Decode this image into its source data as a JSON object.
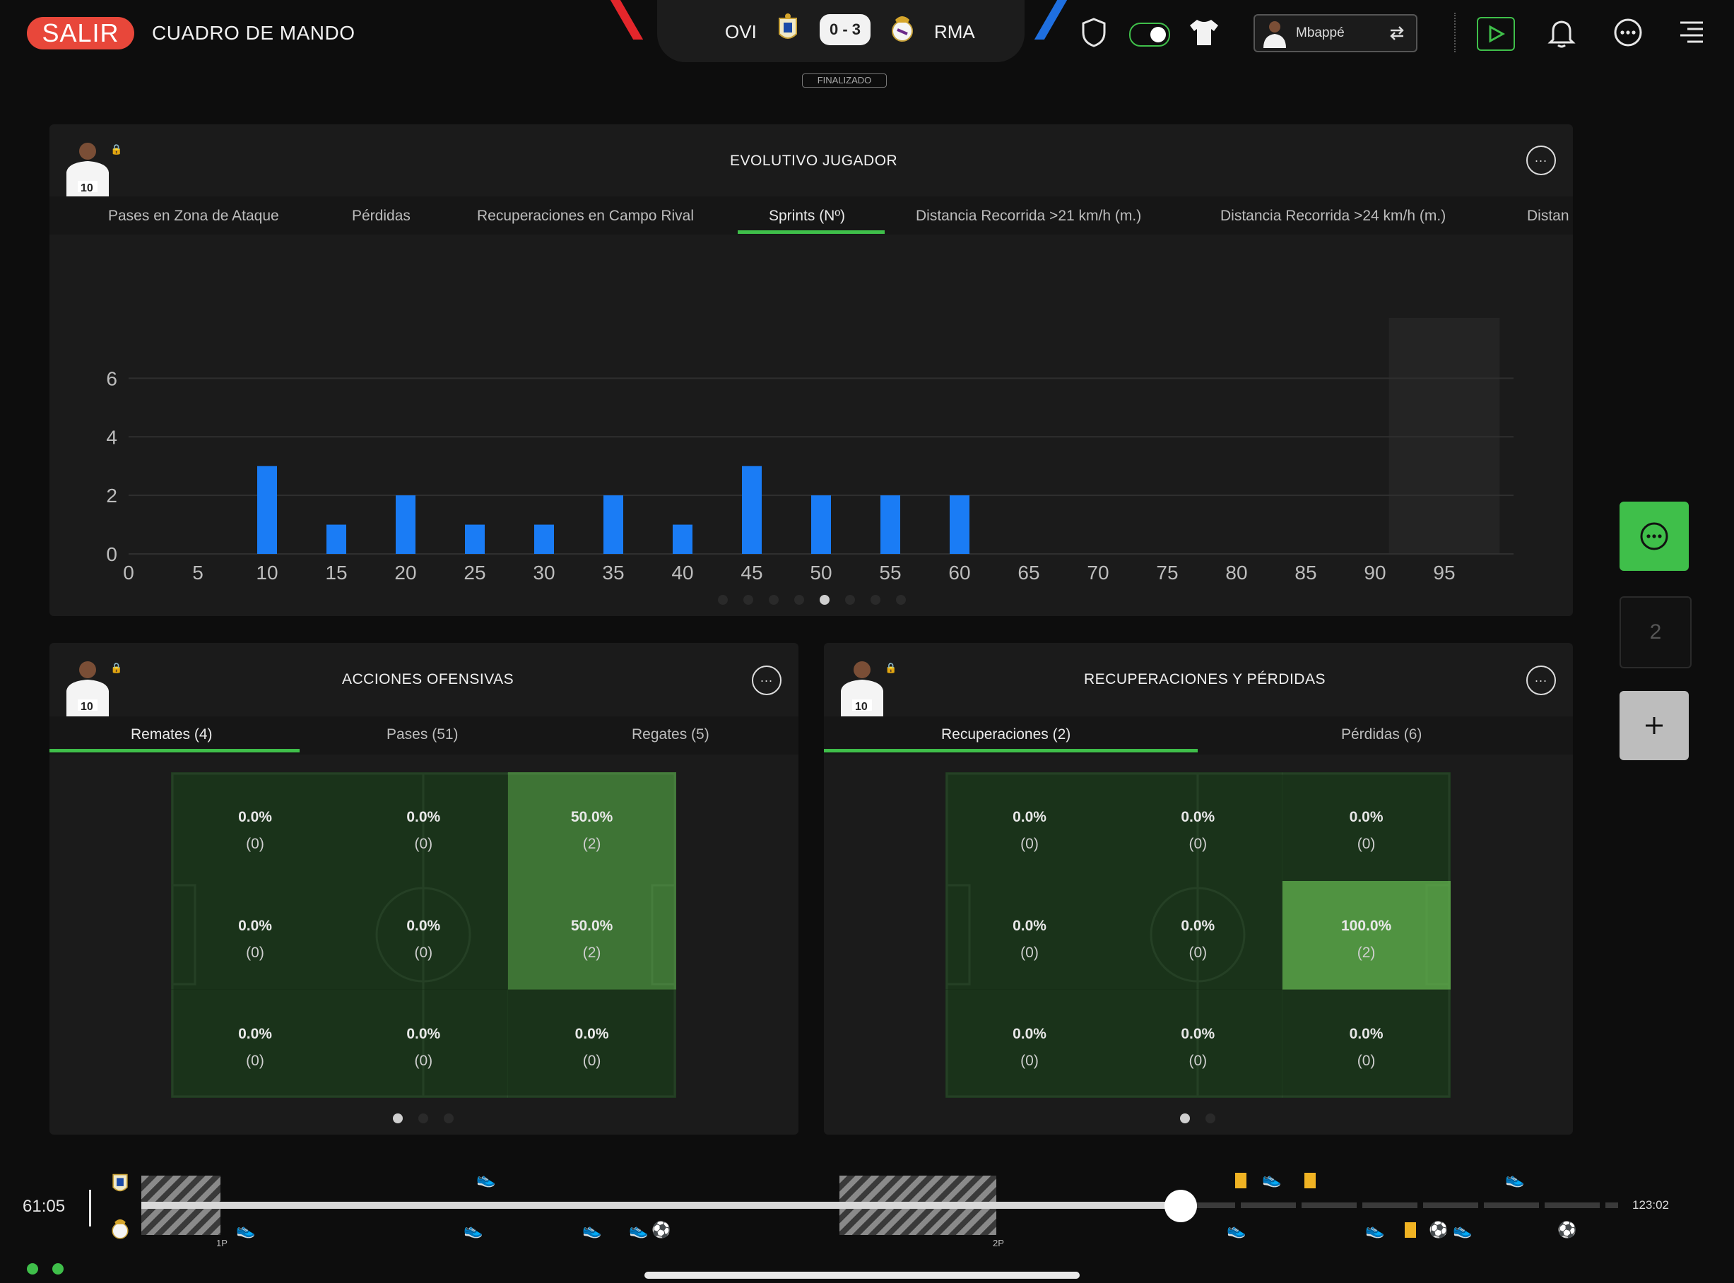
{
  "topbar": {
    "exit_label": "SALIR",
    "title": "CUADRO DE MANDO",
    "home_team": "OVI",
    "score": "0 - 3",
    "away_team": "RMA",
    "status": "FINALIZADO",
    "player_name": "Mbappé",
    "accent": "#3fbf4a"
  },
  "evolutivo": {
    "title": "EVOLUTIVO JUGADOR",
    "jersey": "10",
    "tabs": [
      "Pases en Zona de Ataque",
      "Pérdidas",
      "Recuperaciones en Campo Rival",
      "Sprints (Nº)",
      "Distancia Recorrida >21 km/h (m.)",
      "Distancia Recorrida >24 km/h (m.)",
      "Distan"
    ],
    "active_tab": 3
  },
  "chart_data": {
    "type": "bar",
    "x": [
      10,
      15,
      20,
      25,
      30,
      35,
      40,
      45,
      50,
      55,
      60
    ],
    "values": [
      3,
      1,
      2,
      1,
      1,
      2,
      1,
      3,
      2,
      2,
      2
    ],
    "x_ticks": [
      "0",
      "5",
      "10",
      "15",
      "20",
      "25",
      "30",
      "35",
      "40",
      "45",
      "50",
      "55",
      "60",
      "65",
      "70",
      "75",
      "80",
      "85",
      "90",
      "95"
    ],
    "y_ticks": [
      "0",
      "2",
      "4",
      "6"
    ],
    "xlim": [
      0,
      100
    ],
    "ylim": [
      0,
      7
    ],
    "grid": true,
    "bar_color": "#1a7cf5",
    "highlight_range": [
      91,
      99
    ]
  },
  "ofensivas": {
    "title": "ACCIONES OFENSIVAS",
    "jersey": "10",
    "tabs": [
      "Remates (4)",
      "Pases (51)",
      "Regates (5)"
    ],
    "cells": [
      {
        "pct": "0.0%",
        "count": "(0)"
      },
      {
        "pct": "0.0%",
        "count": "(0)"
      },
      {
        "pct": "50.0%",
        "count": "(2)",
        "intensity": 0.5
      },
      {
        "pct": "0.0%",
        "count": "(0)"
      },
      {
        "pct": "0.0%",
        "count": "(0)"
      },
      {
        "pct": "50.0%",
        "count": "(2)",
        "intensity": 0.5
      },
      {
        "pct": "0.0%",
        "count": "(0)"
      },
      {
        "pct": "0.0%",
        "count": "(0)"
      },
      {
        "pct": "0.0%",
        "count": "(0)"
      }
    ]
  },
  "recuperaciones": {
    "title": "RECUPERACIONES Y PÉRDIDAS",
    "jersey": "10",
    "tabs": [
      "Recuperaciones (2)",
      "Pérdidas (6)"
    ],
    "cells": [
      {
        "pct": "0.0%",
        "count": "(0)"
      },
      {
        "pct": "0.0%",
        "count": "(0)"
      },
      {
        "pct": "0.0%",
        "count": "(0)"
      },
      {
        "pct": "0.0%",
        "count": "(0)"
      },
      {
        "pct": "0.0%",
        "count": "(0)"
      },
      {
        "pct": "100.0%",
        "count": "(2)",
        "intensity": 1
      },
      {
        "pct": "0.0%",
        "count": "(0)"
      },
      {
        "pct": "0.0%",
        "count": "(0)"
      },
      {
        "pct": "0.0%",
        "count": "(0)"
      }
    ]
  },
  "side": {
    "slot_number": "2"
  },
  "timeline": {
    "current_time": "61:05",
    "end_time": "123:02",
    "phase1": "1P",
    "phase2": "2P",
    "progress": 0.72
  }
}
